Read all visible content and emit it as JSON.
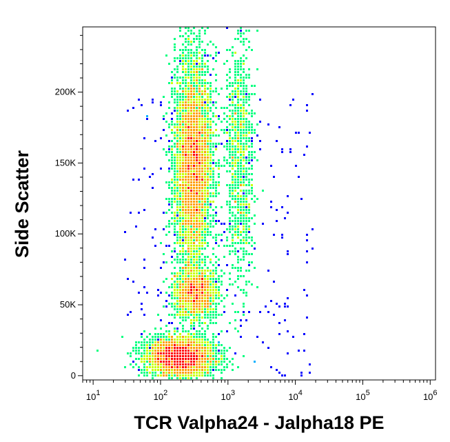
{
  "chart_data": {
    "type": "scatter",
    "subtype": "flow-cytometry-density-dot-plot",
    "xlabel": "TCR Valpha24 - Jalpha18 PE",
    "ylabel": "Side Scatter",
    "x_scale": "log",
    "xlim": [
      7,
      1200000
    ],
    "ylim": [
      -3000,
      246000
    ],
    "x_ticks": [
      {
        "value": 10,
        "base": "10",
        "exp": "1"
      },
      {
        "value": 100,
        "base": "10",
        "exp": "2"
      },
      {
        "value": 1000,
        "base": "10",
        "exp": "3"
      },
      {
        "value": 10000,
        "base": "10",
        "exp": "4"
      },
      {
        "value": 100000,
        "base": "10",
        "exp": "5"
      },
      {
        "value": 1000000,
        "base": "10",
        "exp": "6"
      }
    ],
    "y_ticks": [
      {
        "value": 0,
        "label": "0"
      },
      {
        "value": 50000,
        "label": "50K"
      },
      {
        "value": 100000,
        "label": "100K"
      },
      {
        "value": 150000,
        "label": "150K"
      },
      {
        "value": 200000,
        "label": "200K"
      }
    ],
    "populations": [
      {
        "x_center": 200,
        "y_center": 13000,
        "x_spread_log10": 0.26,
        "y_spread": 7000,
        "weight": 0.22
      },
      {
        "x_center": 330,
        "y_center": 58000,
        "x_spread_log10": 0.16,
        "y_spread": 9000,
        "weight": 0.1
      },
      {
        "x_center": 310,
        "y_center": 150000,
        "x_spread_log10": 0.14,
        "y_spread": 38000,
        "weight": 0.34
      },
      {
        "x_center": 1500,
        "y_center": 155000,
        "x_spread_log10": 0.1,
        "y_spread": 45000,
        "weight": 0.07
      }
    ],
    "colormap": [
      "#0000ff",
      "#00b0ff",
      "#00ff80",
      "#c8ff00",
      "#ffa000",
      "#ff0000"
    ],
    "grid": false,
    "legend": "none"
  }
}
